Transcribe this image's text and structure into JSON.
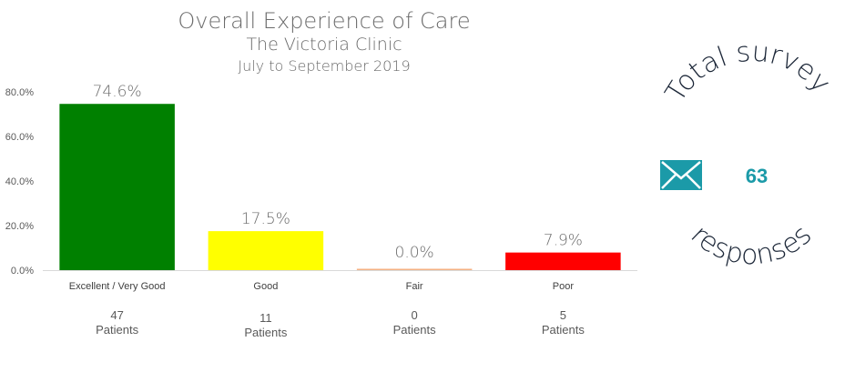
{
  "chart_data": {
    "type": "bar",
    "title": "Overall Experience of Care",
    "subtitle": "The Victoria Clinic",
    "period": "July to September 2019",
    "xlabel": "",
    "ylabel": "",
    "ylim": [
      0,
      80
    ],
    "yticks": [
      0,
      20,
      40,
      60,
      80
    ],
    "ytick_labels": [
      "0.0%",
      "20.0%",
      "40.0%",
      "60.0%",
      "80.0%"
    ],
    "grid": false,
    "categories": [
      "Excellent / Very Good",
      "Good",
      "Fair",
      "Poor"
    ],
    "values": [
      74.6,
      17.5,
      0.0,
      7.9
    ],
    "data_labels": [
      "74.6%",
      "17.5%",
      "0.0%",
      "7.9%"
    ],
    "colors": [
      "#008000",
      "#ffff00",
      "#f4b183",
      "#ff0000"
    ],
    "patient_counts": [
      "47",
      "11",
      "0",
      "5"
    ],
    "patients_label": "Patients"
  },
  "summary": {
    "arc_top_text": "Total survey",
    "arc_bottom_text": "responses",
    "total_responses": "63",
    "icon": "envelope-icon",
    "accent_color": "#1b9aa8"
  }
}
